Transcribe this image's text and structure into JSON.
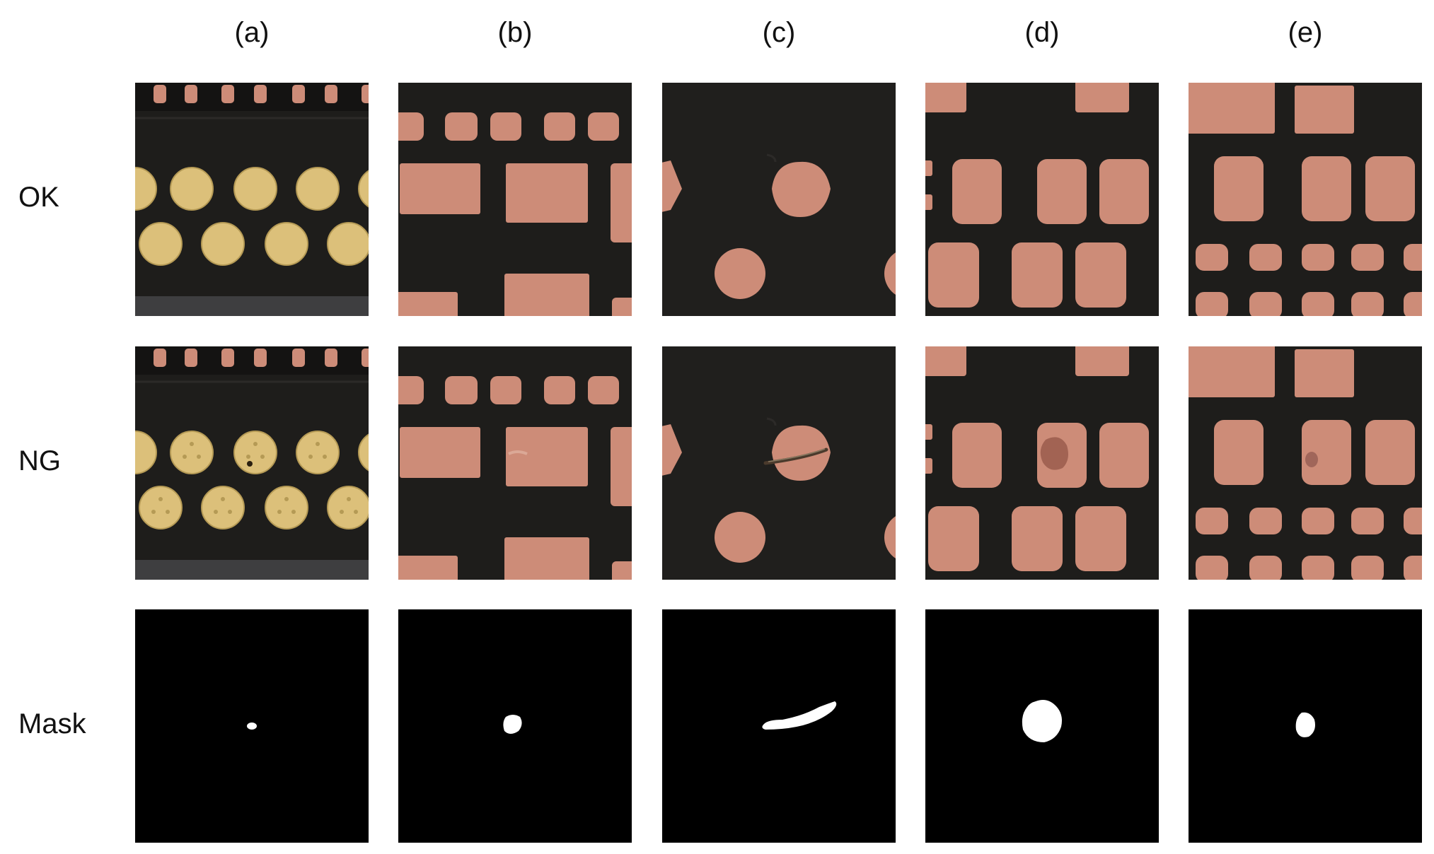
{
  "columns": [
    {
      "id": "a",
      "label": "(a)"
    },
    {
      "id": "b",
      "label": "(b)"
    },
    {
      "id": "c",
      "label": "(c)"
    },
    {
      "id": "d",
      "label": "(d)"
    },
    {
      "id": "e",
      "label": "(e)"
    }
  ],
  "rows": [
    {
      "id": "ok",
      "label": "OK"
    },
    {
      "id": "ng",
      "label": "NG"
    },
    {
      "id": "mask",
      "label": "Mask"
    }
  ],
  "colors": {
    "board": "#1e1d1b",
    "copper_pad": "#cd8c78",
    "gold_pad": "#dcc07a",
    "mask_background": "#000000",
    "mask_defect": "#ffffff",
    "defect_stain": "#9a5c4c"
  }
}
